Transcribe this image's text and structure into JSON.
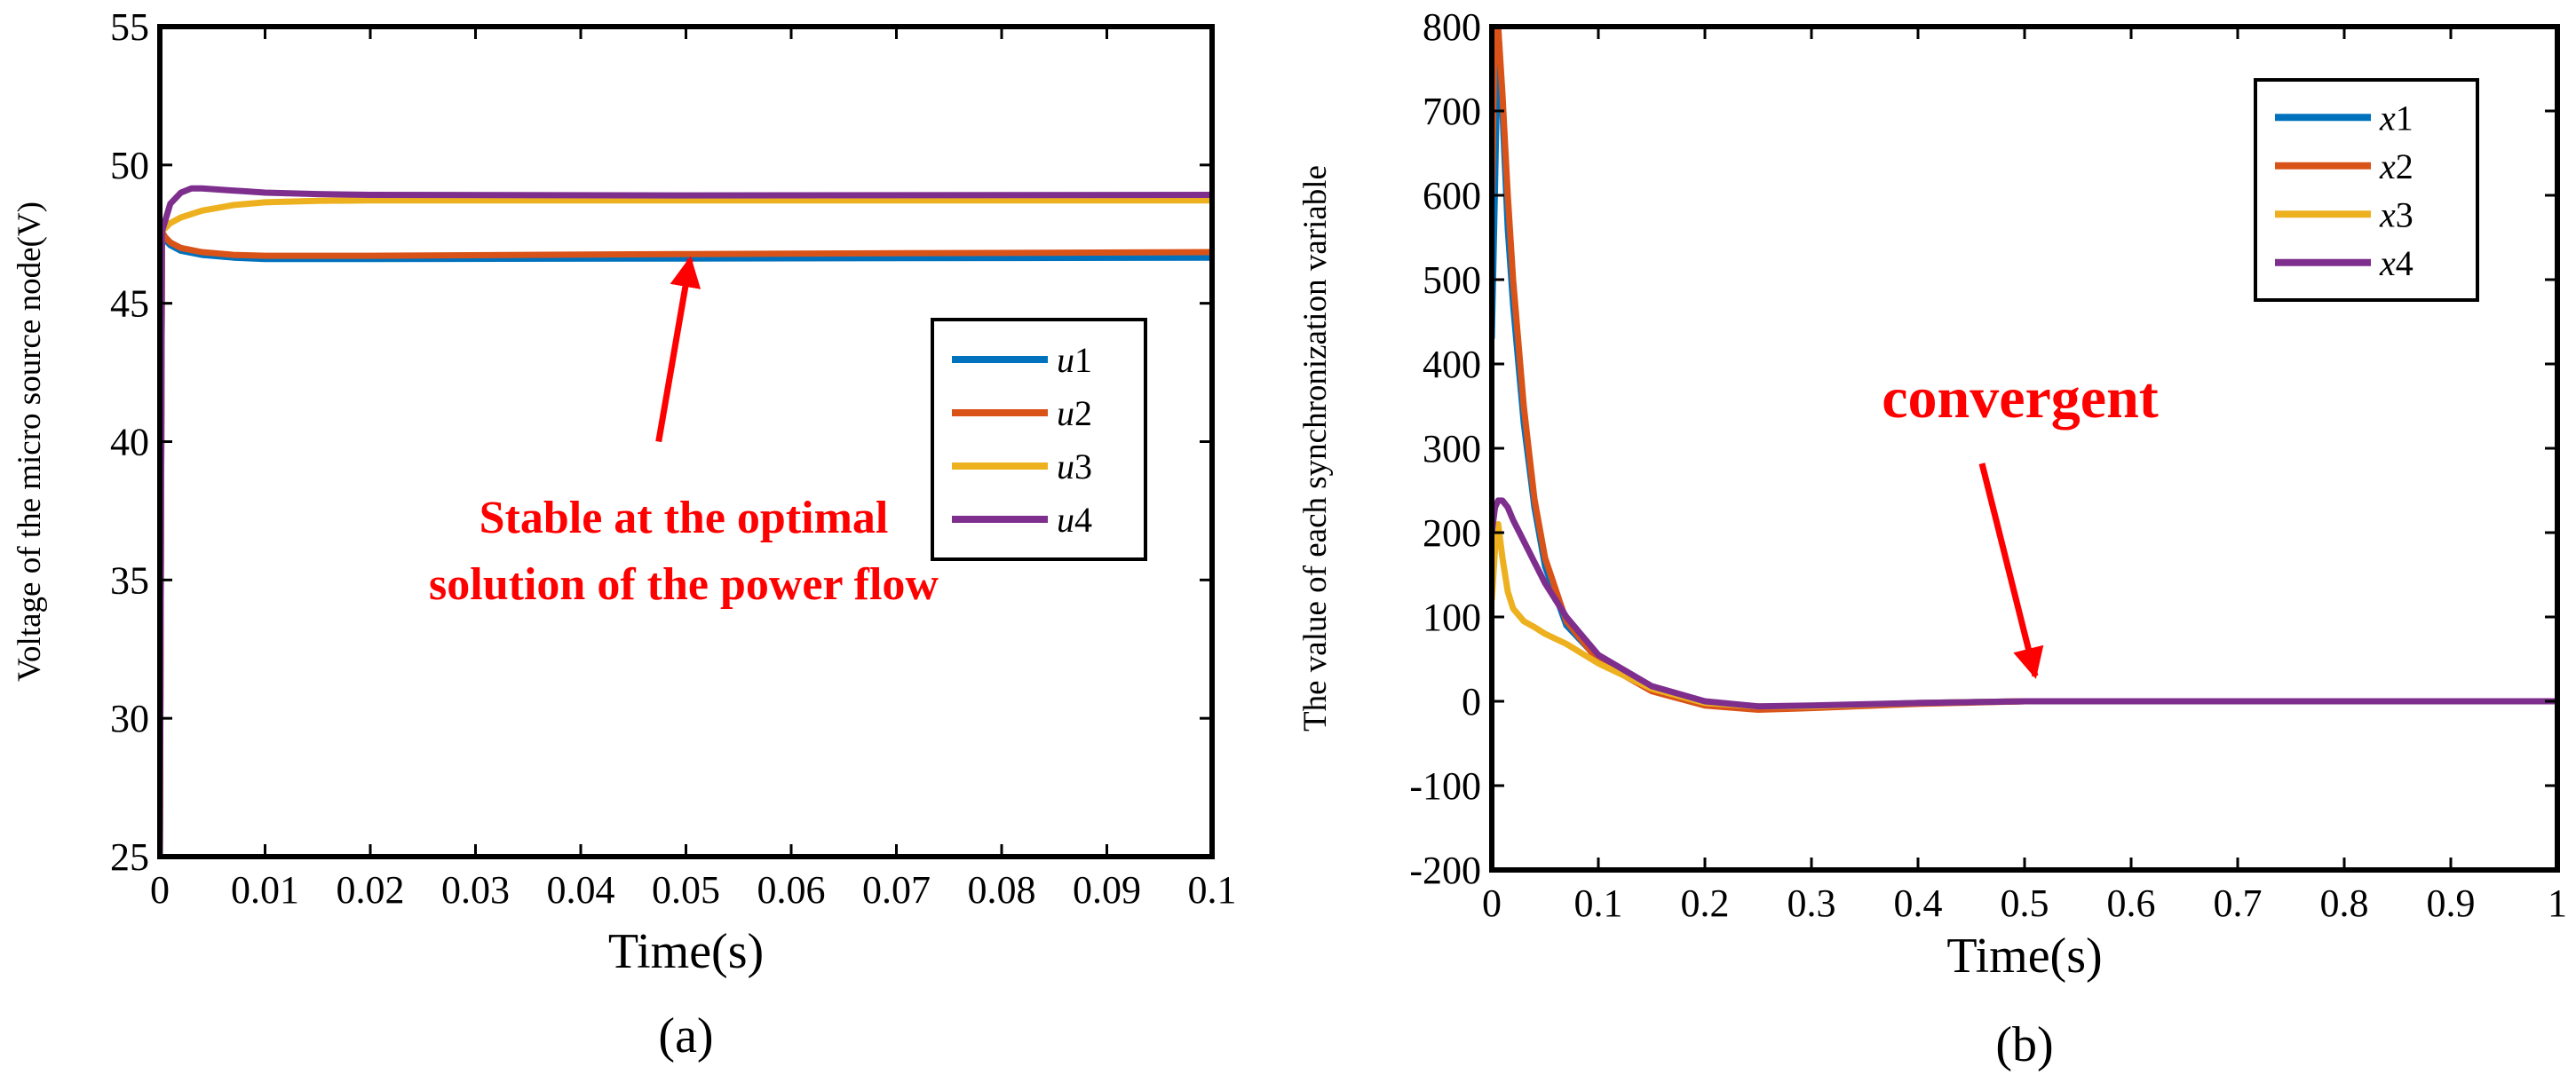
{
  "chart_data": [
    {
      "panel": "(a)",
      "type": "line",
      "xlabel": "Time(s)",
      "ylabel": "Voltage of the micro source node(V)",
      "xlim": [
        0,
        0.1
      ],
      "ylim": [
        25,
        55
      ],
      "xticks": [
        0,
        0.01,
        0.02,
        0.03,
        0.04,
        0.05,
        0.06,
        0.07,
        0.08,
        0.09,
        0.1
      ],
      "xtick_labels": [
        "0",
        "0.01",
        "0.02",
        "0.03",
        "0.04",
        "0.05",
        "0.06",
        "0.07",
        "0.08",
        "0.09",
        "0.1"
      ],
      "yticks": [
        25,
        30,
        35,
        40,
        45,
        50,
        55
      ],
      "ytick_labels": [
        "25",
        "30",
        "35",
        "40",
        "45",
        "50",
        "55"
      ],
      "legend": {
        "position": "right",
        "entries": [
          {
            "var": "u",
            "sub": "1"
          },
          {
            "var": "u",
            "sub": "2"
          },
          {
            "var": "u",
            "sub": "3"
          },
          {
            "var": "u",
            "sub": "4"
          }
        ]
      },
      "series": [
        {
          "name": "u1",
          "color": "#0072BD",
          "x": [
            0,
            0.0002,
            0.0005,
            0.001,
            0.002,
            0.004,
            0.007,
            0.01,
            0.02,
            0.05,
            0.1
          ],
          "y": [
            25,
            47.6,
            47.3,
            47.1,
            46.9,
            46.75,
            46.65,
            46.6,
            46.6,
            46.62,
            46.65
          ]
        },
        {
          "name": "u2",
          "color": "#D95319",
          "x": [
            0,
            0.0002,
            0.0005,
            0.001,
            0.002,
            0.004,
            0.007,
            0.01,
            0.02,
            0.05,
            0.1
          ],
          "y": [
            25,
            47.6,
            47.4,
            47.2,
            47.0,
            46.85,
            46.75,
            46.72,
            46.72,
            46.78,
            46.85
          ]
        },
        {
          "name": "u3",
          "color": "#EDB120",
          "x": [
            0,
            0.0002,
            0.001,
            0.002,
            0.004,
            0.007,
            0.01,
            0.015,
            0.02,
            0.05,
            0.1
          ],
          "y": [
            25,
            47.6,
            47.9,
            48.1,
            48.35,
            48.55,
            48.65,
            48.7,
            48.72,
            48.72,
            48.72
          ]
        },
        {
          "name": "u4",
          "color": "#7E2F8E",
          "x": [
            0,
            0.0002,
            0.001,
            0.002,
            0.003,
            0.004,
            0.006,
            0.008,
            0.01,
            0.015,
            0.02,
            0.05,
            0.1
          ],
          "y": [
            25,
            47.6,
            48.6,
            49.0,
            49.15,
            49.15,
            49.1,
            49.05,
            49.0,
            48.95,
            48.92,
            48.9,
            48.92
          ]
        }
      ],
      "annotation": {
        "lines": [
          "Stable at the optimal",
          "solution of the power flow"
        ],
        "color": "#ff0000",
        "arrow_from": [
          0.0474,
          40
        ],
        "arrow_to": [
          0.0504,
          46.6
        ]
      }
    },
    {
      "panel": "(b)",
      "type": "line",
      "xlabel": "Time(s)",
      "ylabel": "The value of each synchronization variable",
      "xlim": [
        0,
        1
      ],
      "ylim": [
        -200,
        800
      ],
      "xticks": [
        0,
        0.1,
        0.2,
        0.3,
        0.4,
        0.5,
        0.6,
        0.7,
        0.8,
        0.9,
        1
      ],
      "xtick_labels": [
        "0",
        "0.1",
        "0.2",
        "0.3",
        "0.4",
        "0.5",
        "0.6",
        "0.7",
        "0.8",
        "0.9",
        "1"
      ],
      "yticks": [
        -200,
        -100,
        0,
        100,
        200,
        300,
        400,
        500,
        600,
        700,
        800
      ],
      "ytick_labels": [
        "-200",
        "-100",
        "0",
        "100",
        "200",
        "300",
        "400",
        "500",
        "600",
        "700",
        "800"
      ],
      "legend": {
        "position": "top-right",
        "entries": [
          {
            "var": "x",
            "sub": "1"
          },
          {
            "var": "x",
            "sub": "2"
          },
          {
            "var": "x",
            "sub": "3"
          },
          {
            "var": "x",
            "sub": "4"
          }
        ]
      },
      "series": [
        {
          "name": "x1",
          "color": "#0072BD",
          "x": [
            0,
            0.003,
            0.006,
            0.01,
            0.015,
            0.02,
            0.03,
            0.04,
            0.05,
            0.07,
            0.1,
            0.15,
            0.2,
            0.25,
            0.3,
            0.4,
            0.5,
            0.6,
            1.0
          ],
          "y": [
            430,
            610,
            800,
            700,
            560,
            470,
            330,
            230,
            160,
            90,
            50,
            15,
            -3,
            -8,
            -6,
            -2,
            0,
            0,
            0
          ]
        },
        {
          "name": "x2",
          "color": "#D95319",
          "x": [
            0,
            0.003,
            0.006,
            0.01,
            0.015,
            0.02,
            0.03,
            0.04,
            0.05,
            0.07,
            0.1,
            0.15,
            0.2,
            0.25,
            0.3,
            0.4,
            0.5,
            0.6,
            1.0
          ],
          "y": [
            600,
            800,
            800,
            720,
            600,
            500,
            350,
            240,
            170,
            95,
            48,
            12,
            -5,
            -10,
            -8,
            -3,
            0,
            0,
            0
          ]
        },
        {
          "name": "x3",
          "color": "#EDB120",
          "x": [
            0,
            0.003,
            0.006,
            0.01,
            0.015,
            0.02,
            0.03,
            0.04,
            0.05,
            0.07,
            0.1,
            0.15,
            0.2,
            0.25,
            0.3,
            0.4,
            0.5,
            0.6,
            1.0
          ],
          "y": [
            120,
            180,
            210,
            170,
            130,
            110,
            95,
            88,
            80,
            68,
            45,
            15,
            -2,
            -6,
            -6,
            -2,
            0,
            0,
            0
          ]
        },
        {
          "name": "x4",
          "color": "#7E2F8E",
          "x": [
            0,
            0.003,
            0.006,
            0.01,
            0.015,
            0.02,
            0.03,
            0.04,
            0.05,
            0.07,
            0.1,
            0.15,
            0.2,
            0.25,
            0.3,
            0.4,
            0.5,
            0.6,
            1.0
          ],
          "y": [
            200,
            230,
            238,
            238,
            230,
            215,
            190,
            165,
            140,
            100,
            55,
            18,
            0,
            -6,
            -5,
            -2,
            0,
            0,
            0
          ]
        }
      ],
      "annotation": {
        "lines": [
          "convergent"
        ],
        "color": "#ff0000",
        "arrow_from": [
          0.46,
          282
        ],
        "arrow_to": [
          0.51,
          30
        ]
      }
    }
  ]
}
